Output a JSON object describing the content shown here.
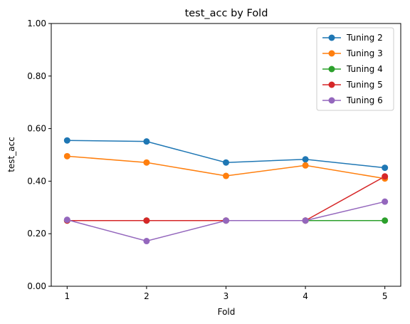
{
  "chart_data": {
    "type": "line",
    "title": "test_acc by Fold",
    "xlabel": "Fold",
    "ylabel": "test_acc",
    "x": [
      1,
      2,
      3,
      4,
      5
    ],
    "x_tick_labels": [
      "1",
      "2",
      "3",
      "4",
      "5"
    ],
    "ylim": [
      0.0,
      1.0
    ],
    "y_tick_labels": [
      "0.00",
      "0.20",
      "0.40",
      "0.60",
      "0.80",
      "1.00"
    ],
    "y_ticks": [
      0.0,
      0.2,
      0.4,
      0.6,
      0.8,
      1.0
    ],
    "grid": false,
    "legend_position": "top-right",
    "series": [
      {
        "name": "Tuning 2",
        "color": "#1f77b4",
        "values": [
          0.555,
          0.551,
          0.471,
          0.483,
          0.451
        ]
      },
      {
        "name": "Tuning 3",
        "color": "#ff7f0e",
        "values": [
          0.495,
          0.471,
          0.42,
          0.46,
          0.41
        ]
      },
      {
        "name": "Tuning 4",
        "color": "#2ca02c",
        "values": [
          0.25,
          0.25,
          0.25,
          0.25,
          0.25
        ]
      },
      {
        "name": "Tuning 5",
        "color": "#d62728",
        "values": [
          0.25,
          0.25,
          0.25,
          0.25,
          0.418
        ]
      },
      {
        "name": "Tuning 6",
        "color": "#9467bd",
        "values": [
          0.253,
          0.172,
          0.25,
          0.25,
          0.322
        ]
      }
    ]
  }
}
